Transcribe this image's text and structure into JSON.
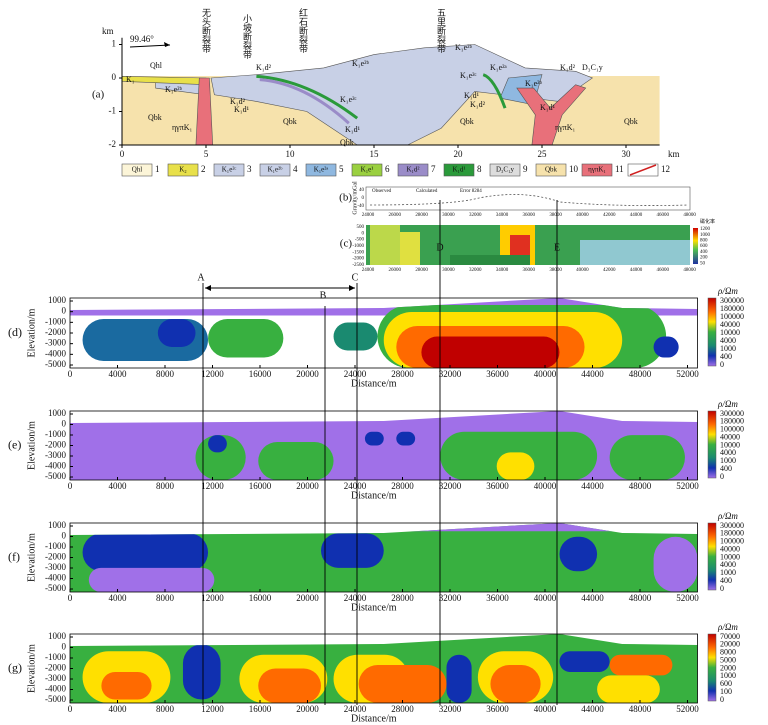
{
  "panel_a": {
    "label": "(a)",
    "y_unit": "km",
    "angle": "99.46°",
    "yticks": [
      "1",
      "0",
      "-1",
      "-2"
    ],
    "xticks": [
      "0",
      "5",
      "10",
      "15",
      "20",
      "25",
      "30"
    ],
    "x_unit": "km",
    "faults": [
      "无头断裂带",
      "小坡断裂带",
      "红石断裂带",
      "五里断裂带"
    ],
    "units": [
      "Qhl",
      "K₁",
      "K₁e²ᵇ",
      "ηγπK₁",
      "Qbk",
      "K₁d²",
      "K₁d¹",
      "K₁d²",
      "Qbk",
      "K₁e²ᵇ",
      "K₁e²ᶜ",
      "K₁d¹",
      "Qbk",
      "K₁e²ᵇ",
      "K₁e²ᶜ",
      "K₁e²ᵃ",
      "K₁d¹",
      "K₁d²",
      "Qbk",
      "ηγπK₁",
      "K₁d¹",
      "K₁d²",
      "D₃C₁y",
      "Qbk",
      "K₁e²ᵇ"
    ],
    "legend": [
      {
        "label": "Qhl",
        "number": 1
      },
      {
        "label": "K₂",
        "number": 2
      },
      {
        "label": "K₁e²ᶜ",
        "number": 3
      },
      {
        "label": "K₁e²ᵇ",
        "number": 4
      },
      {
        "label": "K₁e²ᵃ",
        "number": 5
      },
      {
        "label": "K₁e¹",
        "number": 6
      },
      {
        "label": "K₁d²",
        "number": 7
      },
      {
        "label": "K₁d¹",
        "number": 8
      },
      {
        "label": "D₃C₁y",
        "number": 9
      },
      {
        "label": "Qbk",
        "number": 10
      },
      {
        "label": "ηγπK₁",
        "number": 11
      },
      {
        "label": "",
        "number": 12
      }
    ]
  },
  "panel_b": {
    "label": "(b)",
    "y_label": "Gravity/mGal",
    "yticks": [
      "40",
      "0",
      "-40"
    ],
    "legend": [
      "Observed",
      "Calculated",
      "Error 8284"
    ],
    "xticks": [
      "24000",
      "26000",
      "28000",
      "30000",
      "32000",
      "34000",
      "36000",
      "38000",
      "40000",
      "42000",
      "44000",
      "46000",
      "48000"
    ]
  },
  "panel_c": {
    "label": "(c)",
    "colorbar_title": "磁化率",
    "colorbar_ticks": [
      "1200",
      "1000",
      "800",
      "600",
      "400",
      "200",
      "50"
    ],
    "yticks": [
      "500",
      "0",
      "-500",
      "-1000",
      "-1500",
      "-2000",
      "-2500"
    ],
    "xticks": [
      "24000",
      "26000",
      "28000",
      "30000",
      "32000",
      "34000",
      "36000",
      "38000",
      "40000",
      "42000",
      "44000",
      "46000",
      "48000"
    ]
  },
  "markers": [
    "A",
    "B",
    "C",
    "D",
    "E"
  ],
  "sections": [
    {
      "label": "(d)",
      "y_label": "Elevation/m",
      "x_label": "Distance/m",
      "colorbar_title": "ρ/Ωm",
      "yticks": [
        "1000",
        "0",
        "-1000",
        "-2000",
        "-3000",
        "-4000",
        "-5000"
      ],
      "xticks": [
        "0",
        "4000",
        "8000",
        "12000",
        "16000",
        "20000",
        "24000",
        "28000",
        "32000",
        "36000",
        "40000",
        "44000",
        "48000",
        "52000"
      ],
      "colorbar_ticks": [
        "300000",
        "180000",
        "100000",
        "40000",
        "10000",
        "4000",
        "1000",
        "400",
        "0"
      ]
    },
    {
      "label": "(e)",
      "y_label": "Elevation/m",
      "x_label": "Distance/m",
      "colorbar_title": "ρ/Ωm",
      "yticks": [
        "1000",
        "0",
        "-1000",
        "-2000",
        "-3000",
        "-4000",
        "-5000"
      ],
      "xticks": [
        "0",
        "4000",
        "8000",
        "12000",
        "16000",
        "20000",
        "24000",
        "28000",
        "32000",
        "36000",
        "40000",
        "44000",
        "48000",
        "52000"
      ],
      "colorbar_ticks": [
        "300000",
        "180000",
        "100000",
        "40000",
        "10000",
        "4000",
        "1000",
        "400",
        "0"
      ]
    },
    {
      "label": "(f)",
      "y_label": "Elevation/m",
      "x_label": "Distance/m",
      "colorbar_title": "ρ/Ωm",
      "yticks": [
        "1000",
        "0",
        "-1000",
        "-2000",
        "-3000",
        "-4000",
        "-5000"
      ],
      "xticks": [
        "0",
        "4000",
        "8000",
        "12000",
        "16000",
        "20000",
        "24000",
        "28000",
        "32000",
        "36000",
        "40000",
        "44000",
        "48000",
        "52000"
      ],
      "colorbar_ticks": [
        "300000",
        "180000",
        "100000",
        "40000",
        "10000",
        "4000",
        "1000",
        "400",
        "0"
      ]
    },
    {
      "label": "(g)",
      "y_label": "Elevation/m",
      "x_label": "Distance/m",
      "colorbar_title": "ρ/Ωm",
      "yticks": [
        "1000",
        "0",
        "-1000",
        "-2000",
        "-3000",
        "-4000",
        "-5000"
      ],
      "xticks": [
        "0",
        "4000",
        "8000",
        "12000",
        "16000",
        "20000",
        "24000",
        "28000",
        "32000",
        "36000",
        "40000",
        "44000",
        "48000",
        "52000"
      ],
      "colorbar_ticks": [
        "70000",
        "20000",
        "8000",
        "5000",
        "2000",
        "1000",
        "600",
        "100",
        "0"
      ]
    }
  ]
}
